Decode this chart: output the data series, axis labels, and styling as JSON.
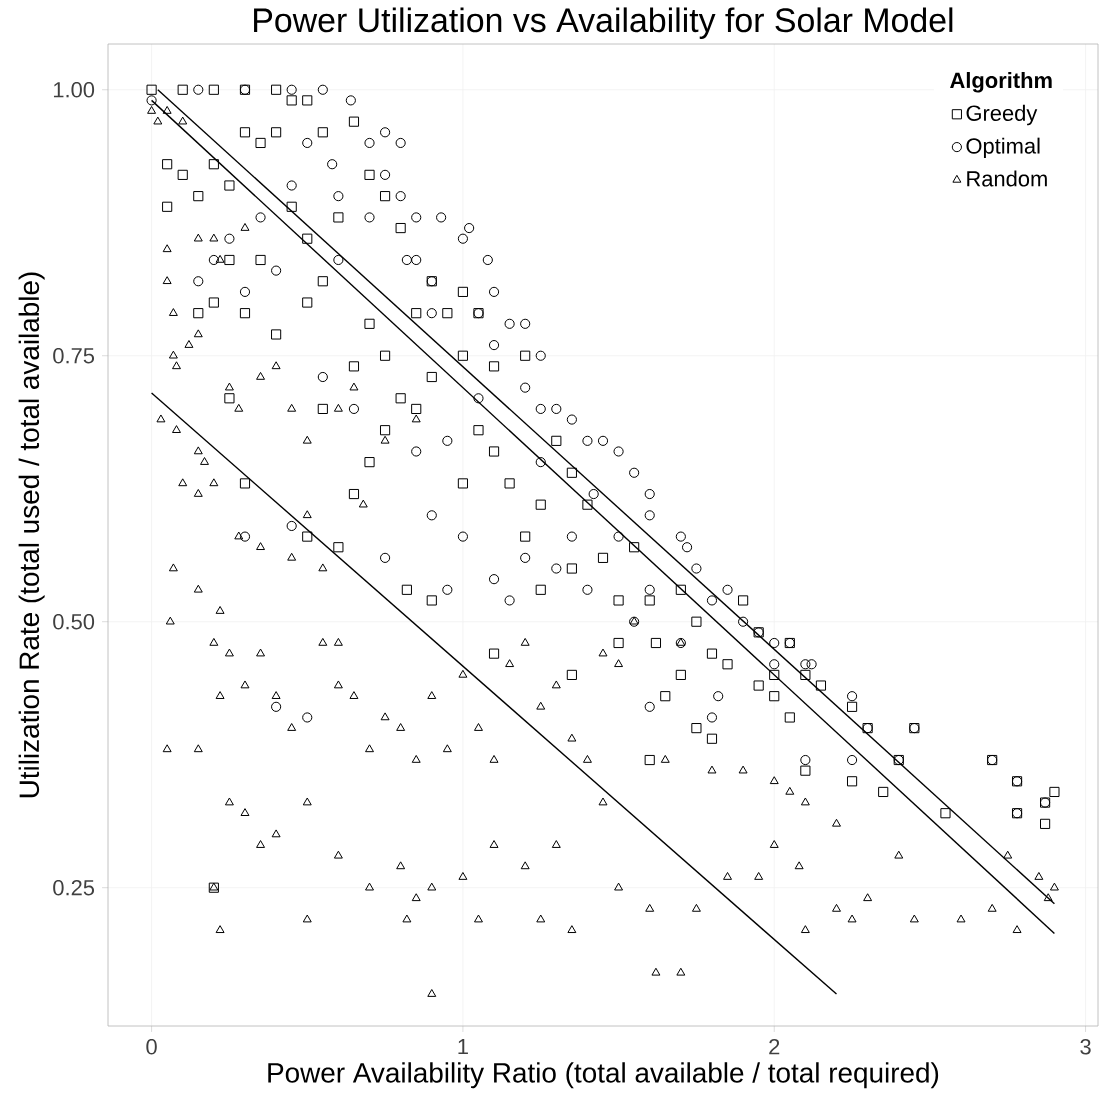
{
  "chart_data": {
    "type": "scatter",
    "title": "Power Utilization vs Availability for Solar Model",
    "xlabel": "Power Availability Ratio (total available / total required)",
    "ylabel": "Utilization Rate (total used / total available)",
    "legend_title": "Algorithm",
    "legend": "top right",
    "grid": true,
    "xlim": [
      -0.14,
      3.04
    ],
    "ylim": [
      0.12,
      1.043
    ],
    "xticks": [
      0,
      1,
      2,
      3
    ],
    "yticks": [
      0.25,
      {
        "value": 0.5,
        "label": "0.50"
      },
      {
        "value": 0.75,
        "label": "0.75"
      },
      {
        "value": 1.0,
        "label": "1.00"
      }
    ],
    "series": [
      {
        "name": "Greedy",
        "marker": "square",
        "color": "#000000",
        "x": [
          0.0,
          0.1,
          0.2,
          0.3,
          0.4,
          0.45,
          0.5,
          0.05,
          0.1,
          0.05,
          0.15,
          0.2,
          0.25,
          0.3,
          0.35,
          0.4,
          0.55,
          0.65,
          0.7,
          0.75,
          0.8,
          0.6,
          0.5,
          0.45,
          0.35,
          0.25,
          0.2,
          0.15,
          0.3,
          0.4,
          0.5,
          0.55,
          0.7,
          0.75,
          0.65,
          0.85,
          0.9,
          0.95,
          1.0,
          1.05,
          1.0,
          1.1,
          1.2,
          0.9,
          0.85,
          0.8,
          0.7,
          0.75,
          0.65,
          0.55,
          0.5,
          0.6,
          0.2,
          0.25,
          0.3,
          0.82,
          0.9,
          1.0,
          1.05,
          1.1,
          1.15,
          1.2,
          1.25,
          1.3,
          1.35,
          1.25,
          1.35,
          1.4,
          1.45,
          1.5,
          1.55,
          1.6,
          1.62,
          1.7,
          1.7,
          1.75,
          1.8,
          1.65,
          1.75,
          1.8,
          1.85,
          1.9,
          1.95,
          2.0,
          2.0,
          2.05,
          2.1,
          2.15,
          1.35,
          1.5,
          1.1,
          1.95,
          2.05,
          2.1,
          2.25,
          2.3,
          2.35,
          2.4,
          2.45,
          2.55,
          2.7,
          2.78,
          2.78,
          2.87,
          2.87,
          2.9,
          2.25,
          1.6
        ],
        "values": [
          1.0,
          1.0,
          1.0,
          1.0,
          1.0,
          0.99,
          0.99,
          0.93,
          0.92,
          0.89,
          0.9,
          0.93,
          0.91,
          0.96,
          0.95,
          0.96,
          0.96,
          0.97,
          0.92,
          0.9,
          0.87,
          0.88,
          0.86,
          0.89,
          0.84,
          0.84,
          0.8,
          0.79,
          0.79,
          0.77,
          0.8,
          0.82,
          0.78,
          0.75,
          0.74,
          0.79,
          0.82,
          0.79,
          0.81,
          0.79,
          0.75,
          0.74,
          0.75,
          0.73,
          0.7,
          0.71,
          0.65,
          0.68,
          0.62,
          0.7,
          0.58,
          0.57,
          0.25,
          0.71,
          0.63,
          0.53,
          0.52,
          0.63,
          0.68,
          0.66,
          0.63,
          0.58,
          0.61,
          0.67,
          0.64,
          0.53,
          0.55,
          0.61,
          0.56,
          0.52,
          0.57,
          0.52,
          0.48,
          0.53,
          0.45,
          0.5,
          0.47,
          0.43,
          0.4,
          0.39,
          0.46,
          0.52,
          0.49,
          0.45,
          0.43,
          0.48,
          0.45,
          0.44,
          0.45,
          0.48,
          0.47,
          0.44,
          0.41,
          0.36,
          0.35,
          0.4,
          0.34,
          0.37,
          0.4,
          0.32,
          0.37,
          0.32,
          0.35,
          0.31,
          0.33,
          0.34,
          0.42,
          0.37
        ]
      },
      {
        "name": "Optimal",
        "marker": "circle",
        "color": "#000000",
        "x": [
          0.0,
          0.15,
          0.3,
          0.45,
          0.55,
          0.64,
          0.5,
          0.58,
          0.6,
          0.7,
          0.75,
          0.8,
          0.75,
          0.8,
          0.85,
          0.93,
          0.85,
          0.9,
          0.82,
          1.0,
          1.02,
          1.08,
          1.1,
          1.15,
          1.2,
          1.1,
          1.25,
          1.2,
          1.3,
          1.35,
          1.25,
          1.4,
          1.45,
          1.5,
          1.55,
          1.6,
          1.6,
          1.7,
          1.72,
          1.75,
          1.8,
          1.85,
          1.9,
          1.95,
          2.0,
          2.05,
          2.1,
          2.12,
          1.6,
          1.55,
          1.4,
          1.3,
          1.2,
          1.1,
          0.95,
          1.0,
          0.9,
          0.85,
          0.95,
          1.05,
          0.6,
          0.4,
          0.3,
          0.15,
          0.2,
          0.25,
          0.35,
          0.45,
          0.55,
          0.65,
          0.45,
          0.3,
          0.5,
          0.4,
          1.15,
          1.35,
          0.75,
          1.6,
          1.7,
          1.82,
          1.8,
          2.0,
          2.1,
          2.25,
          2.25,
          2.3,
          2.4,
          2.45,
          2.7,
          2.78,
          2.78,
          2.87,
          1.5,
          1.25,
          1.42,
          0.7,
          0.9,
          1.05
        ],
        "values": [
          0.99,
          1.0,
          1.0,
          1.0,
          1.0,
          0.99,
          0.95,
          0.93,
          0.9,
          0.95,
          0.96,
          0.95,
          0.92,
          0.9,
          0.88,
          0.88,
          0.84,
          0.82,
          0.84,
          0.86,
          0.87,
          0.84,
          0.81,
          0.78,
          0.78,
          0.76,
          0.75,
          0.72,
          0.7,
          0.69,
          0.7,
          0.67,
          0.67,
          0.66,
          0.64,
          0.62,
          0.6,
          0.58,
          0.57,
          0.55,
          0.52,
          0.53,
          0.5,
          0.49,
          0.48,
          0.48,
          0.46,
          0.46,
          0.53,
          0.5,
          0.53,
          0.55,
          0.56,
          0.54,
          0.53,
          0.58,
          0.6,
          0.66,
          0.67,
          0.71,
          0.84,
          0.83,
          0.81,
          0.82,
          0.84,
          0.86,
          0.88,
          0.91,
          0.73,
          0.7,
          0.59,
          0.58,
          0.41,
          0.42,
          0.52,
          0.58,
          0.56,
          0.42,
          0.48,
          0.43,
          0.41,
          0.46,
          0.37,
          0.43,
          0.37,
          0.4,
          0.37,
          0.4,
          0.37,
          0.32,
          0.35,
          0.33,
          0.58,
          0.65,
          0.62,
          0.88,
          0.79,
          0.79
        ]
      },
      {
        "name": "Random",
        "marker": "triangle",
        "color": "#000000",
        "x": [
          0.0,
          0.02,
          0.05,
          0.1,
          0.05,
          0.05,
          0.07,
          0.07,
          0.08,
          0.12,
          0.15,
          0.15,
          0.2,
          0.22,
          0.3,
          0.03,
          0.08,
          0.15,
          0.17,
          0.1,
          0.15,
          0.2,
          0.25,
          0.28,
          0.35,
          0.4,
          0.45,
          0.5,
          0.6,
          0.65,
          0.68,
          0.75,
          0.85,
          0.55,
          0.5,
          0.45,
          0.35,
          0.28,
          0.22,
          0.15,
          0.07,
          0.06,
          0.2,
          0.25,
          0.3,
          0.22,
          0.35,
          0.4,
          0.45,
          0.55,
          0.6,
          0.6,
          0.65,
          0.7,
          0.75,
          0.8,
          0.85,
          0.9,
          0.95,
          1.0,
          1.05,
          1.1,
          1.15,
          1.2,
          1.25,
          1.3,
          1.35,
          1.4,
          1.45,
          1.5,
          1.55,
          1.7,
          1.9,
          2.0,
          2.05,
          2.1,
          1.8,
          1.65,
          1.45,
          1.3,
          1.2,
          1.1,
          1.0,
          0.9,
          0.85,
          0.8,
          0.7,
          0.6,
          0.5,
          0.4,
          0.35,
          0.3,
          0.25,
          0.2,
          0.22,
          0.05,
          0.15,
          0.5,
          0.9,
          0.82,
          1.05,
          1.25,
          1.35,
          1.5,
          1.6,
          1.62,
          1.7,
          1.75,
          1.85,
          1.95,
          2.0,
          2.08,
          2.1,
          2.2,
          2.25,
          2.3,
          2.45,
          2.6,
          2.7,
          2.78,
          2.75,
          2.4,
          2.2,
          2.85,
          2.9,
          2.88
        ],
        "values": [
          0.98,
          0.97,
          0.98,
          0.97,
          0.85,
          0.82,
          0.79,
          0.75,
          0.74,
          0.76,
          0.77,
          0.86,
          0.86,
          0.84,
          0.87,
          0.69,
          0.68,
          0.66,
          0.65,
          0.63,
          0.62,
          0.63,
          0.72,
          0.7,
          0.73,
          0.74,
          0.7,
          0.67,
          0.7,
          0.72,
          0.61,
          0.67,
          0.69,
          0.55,
          0.6,
          0.56,
          0.57,
          0.58,
          0.51,
          0.53,
          0.55,
          0.5,
          0.48,
          0.47,
          0.44,
          0.43,
          0.47,
          0.43,
          0.4,
          0.48,
          0.48,
          0.44,
          0.43,
          0.38,
          0.41,
          0.4,
          0.37,
          0.43,
          0.38,
          0.45,
          0.4,
          0.37,
          0.46,
          0.48,
          0.42,
          0.44,
          0.39,
          0.37,
          0.47,
          0.46,
          0.5,
          0.48,
          0.36,
          0.35,
          0.34,
          0.33,
          0.36,
          0.37,
          0.33,
          0.29,
          0.27,
          0.29,
          0.26,
          0.25,
          0.24,
          0.27,
          0.25,
          0.28,
          0.33,
          0.3,
          0.29,
          0.32,
          0.33,
          0.25,
          0.21,
          0.38,
          0.38,
          0.22,
          0.15,
          0.22,
          0.22,
          0.22,
          0.21,
          0.25,
          0.23,
          0.17,
          0.17,
          0.23,
          0.26,
          0.26,
          0.29,
          0.27,
          0.21,
          0.23,
          0.22,
          0.24,
          0.22,
          0.22,
          0.23,
          0.21,
          0.28,
          0.28,
          0.31,
          0.26,
          0.25,
          0.24
        ]
      },
      {
        "type": "line",
        "color": "#000000",
        "x": [
          0.0,
          2.9
        ],
        "values": [
          0.99,
          0.207
        ]
      },
      {
        "type": "line",
        "color": "#000000",
        "x": [
          0.02,
          2.9
        ],
        "values": [
          1.0,
          0.235
        ]
      },
      {
        "type": "line",
        "color": "#000000",
        "x": [
          0.0,
          2.2
        ],
        "values": [
          0.715,
          0.15
        ]
      }
    ]
  }
}
